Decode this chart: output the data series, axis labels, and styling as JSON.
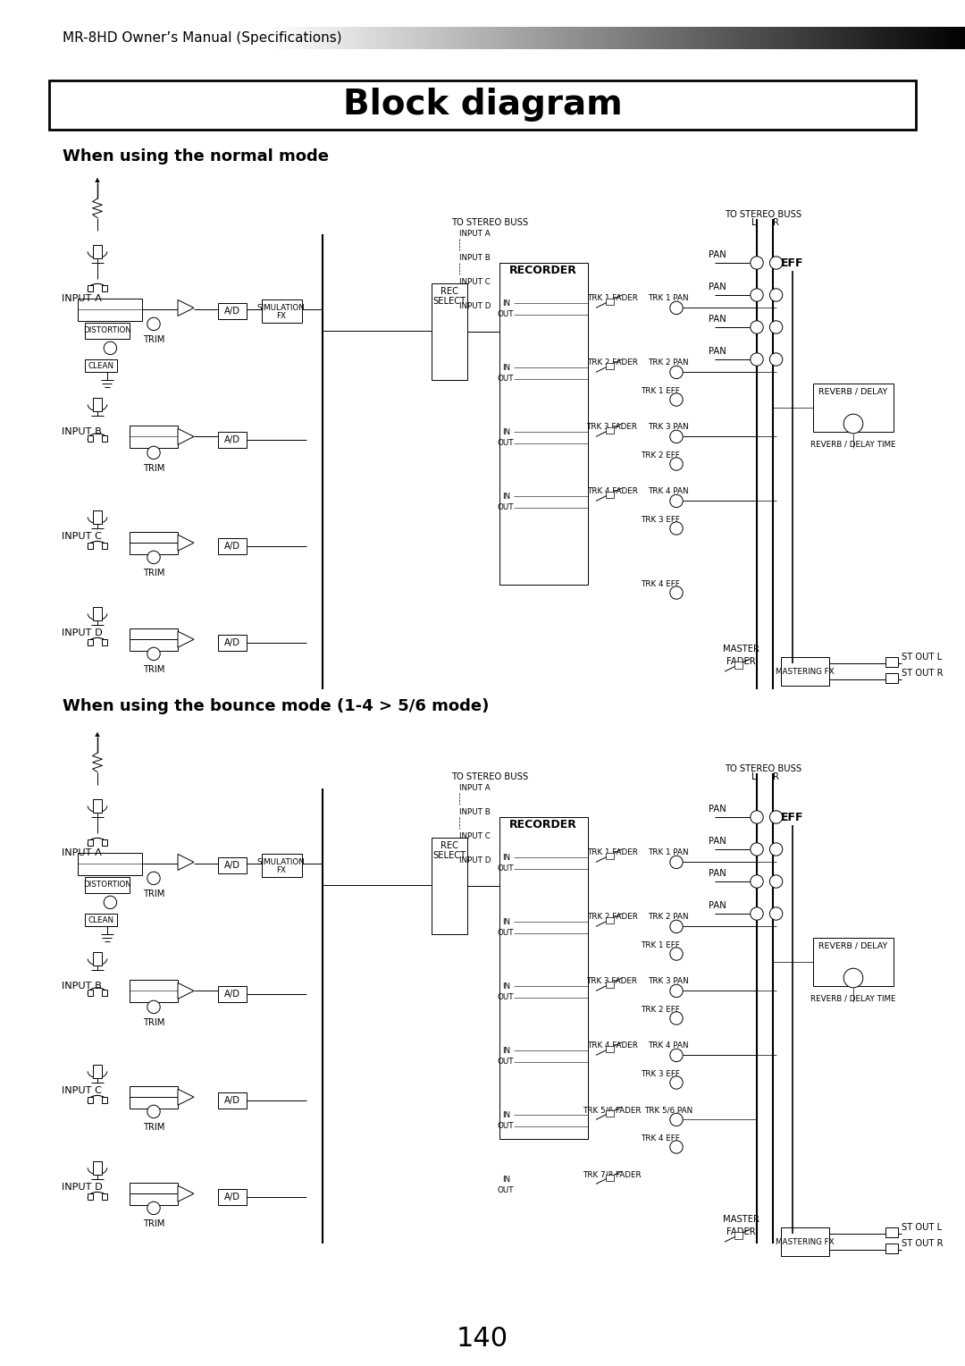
{
  "page_title": "Block diagram",
  "header_text": "MR-8HD Owner’s Manual (Specifications)",
  "section1_title": "When using the normal mode",
  "section2_title": "When using the bounce mode (1-4 > 5/6 mode)",
  "page_number": "140",
  "bg_color": "#ffffff",
  "title_box_color": "#000000",
  "header_gradient_start": "#cccccc",
  "header_gradient_end": "#000000"
}
